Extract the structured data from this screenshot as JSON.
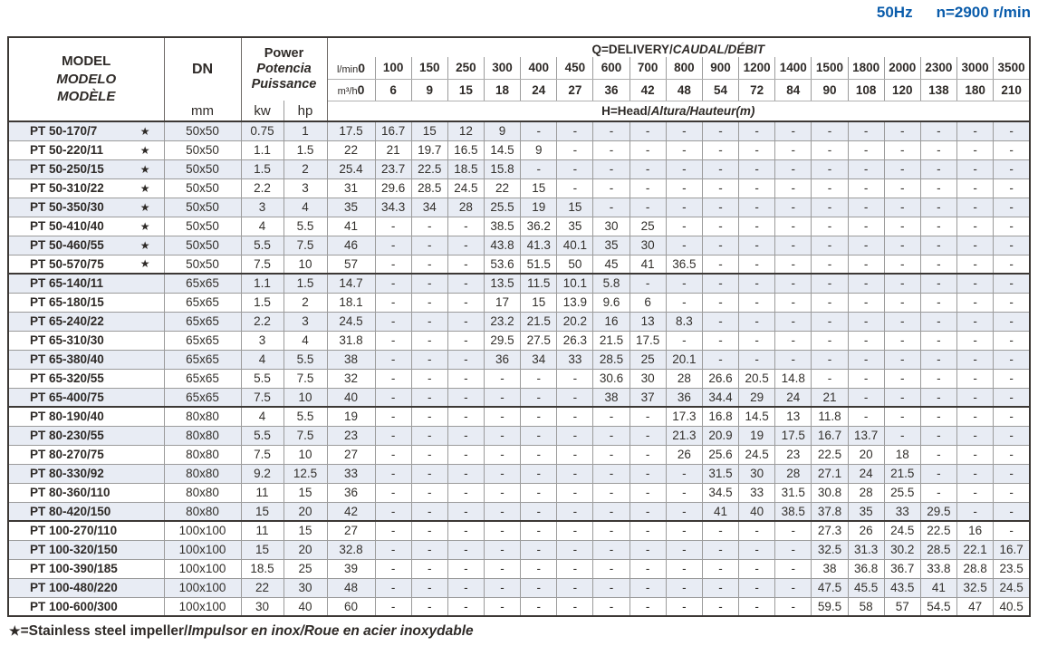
{
  "note": {
    "frequency": "50Hz",
    "speed": "n=2900 r/min"
  },
  "table": {
    "model_header": {
      "line1": "MODEL",
      "line2": "MODELO",
      "line3": "MODÈLE"
    },
    "dn_header": {
      "label": "DN",
      "unit": "mm"
    },
    "power_header": {
      "line1": "Power",
      "line2": "Potencia",
      "line3": "Puissance",
      "unit1": "kw",
      "unit2": "hp"
    },
    "q_header": {
      "title_plain": "Q=DELIVERY/",
      "title_italic": "CAUDAL/DÉBIT",
      "lmin_label": "l/min",
      "m3h_label": "m³/h",
      "lmin_values": [
        "0",
        "100",
        "150",
        "250",
        "300",
        "400",
        "450",
        "600",
        "700",
        "800",
        "900",
        "1200",
        "1400",
        "1500",
        "1800",
        "2000",
        "2300",
        "3000",
        "3500"
      ],
      "m3h_values": [
        "0",
        "6",
        "9",
        "15",
        "18",
        "24",
        "27",
        "36",
        "42",
        "48",
        "54",
        "72",
        "84",
        "90",
        "108",
        "120",
        "138",
        "180",
        "210"
      ],
      "head_plain": "H=Head/",
      "head_italic": "Altura/Hauteur(m)"
    },
    "rows": [
      {
        "model": "PT 50-170/7",
        "star": true,
        "group_start": false,
        "dn": "50x50",
        "kw": "0.75",
        "hp": "1",
        "heads": [
          "17.5",
          "16.7",
          "15",
          "12",
          "9",
          "-",
          "-",
          "-",
          "-",
          "-",
          "-",
          "-",
          "-",
          "-",
          "-",
          "-",
          "-",
          "-",
          "-"
        ]
      },
      {
        "model": "PT 50-220/11",
        "star": true,
        "group_start": false,
        "dn": "50x50",
        "kw": "1.1",
        "hp": "1.5",
        "heads": [
          "22",
          "21",
          "19.7",
          "16.5",
          "14.5",
          "9",
          "-",
          "-",
          "-",
          "-",
          "-",
          "-",
          "-",
          "-",
          "-",
          "-",
          "-",
          "-",
          "-"
        ]
      },
      {
        "model": "PT 50-250/15",
        "star": true,
        "group_start": false,
        "dn": "50x50",
        "kw": "1.5",
        "hp": "2",
        "heads": [
          "25.4",
          "23.7",
          "22.5",
          "18.5",
          "15.8",
          "-",
          "-",
          "-",
          "-",
          "-",
          "-",
          "-",
          "-",
          "-",
          "-",
          "-",
          "-",
          "-",
          "-"
        ]
      },
      {
        "model": "PT 50-310/22",
        "star": true,
        "group_start": false,
        "dn": "50x50",
        "kw": "2.2",
        "hp": "3",
        "heads": [
          "31",
          "29.6",
          "28.5",
          "24.5",
          "22",
          "15",
          "-",
          "-",
          "-",
          "-",
          "-",
          "-",
          "-",
          "-",
          "-",
          "-",
          "-",
          "-",
          "-"
        ]
      },
      {
        "model": "PT 50-350/30",
        "star": true,
        "group_start": false,
        "dn": "50x50",
        "kw": "3",
        "hp": "4",
        "heads": [
          "35",
          "34.3",
          "34",
          "28",
          "25.5",
          "19",
          "15",
          "-",
          "-",
          "-",
          "-",
          "-",
          "-",
          "-",
          "-",
          "-",
          "-",
          "-",
          "-"
        ]
      },
      {
        "model": "PT 50-410/40",
        "star": true,
        "group_start": false,
        "dn": "50x50",
        "kw": "4",
        "hp": "5.5",
        "heads": [
          "41",
          "-",
          "-",
          "-",
          "38.5",
          "36.2",
          "35",
          "30",
          "25",
          "-",
          "-",
          "-",
          "-",
          "-",
          "-",
          "-",
          "-",
          "-",
          "-"
        ]
      },
      {
        "model": "PT 50-460/55",
        "star": true,
        "group_start": false,
        "dn": "50x50",
        "kw": "5.5",
        "hp": "7.5",
        "heads": [
          "46",
          "-",
          "-",
          "-",
          "43.8",
          "41.3",
          "40.1",
          "35",
          "30",
          "-",
          "-",
          "-",
          "-",
          "-",
          "-",
          "-",
          "-",
          "-",
          "-"
        ]
      },
      {
        "model": "PT 50-570/75",
        "star": true,
        "group_start": false,
        "dn": "50x50",
        "kw": "7.5",
        "hp": "10",
        "heads": [
          "57",
          "-",
          "-",
          "-",
          "53.6",
          "51.5",
          "50",
          "45",
          "41",
          "36.5",
          "-",
          "-",
          "-",
          "-",
          "-",
          "-",
          "-",
          "-",
          "-"
        ]
      },
      {
        "model": "PT 65-140/11",
        "star": false,
        "group_start": true,
        "dn": "65x65",
        "kw": "1.1",
        "hp": "1.5",
        "heads": [
          "14.7",
          "-",
          "-",
          "-",
          "13.5",
          "11.5",
          "10.1",
          "5.8",
          "-",
          "-",
          "-",
          "-",
          "-",
          "-",
          "-",
          "-",
          "-",
          "-",
          "-"
        ]
      },
      {
        "model": "PT 65-180/15",
        "star": false,
        "group_start": false,
        "dn": "65x65",
        "kw": "1.5",
        "hp": "2",
        "heads": [
          "18.1",
          "-",
          "-",
          "-",
          "17",
          "15",
          "13.9",
          "9.6",
          "6",
          "-",
          "-",
          "-",
          "-",
          "-",
          "-",
          "-",
          "-",
          "-",
          "-"
        ]
      },
      {
        "model": "PT 65-240/22",
        "star": false,
        "group_start": false,
        "dn": "65x65",
        "kw": "2.2",
        "hp": "3",
        "heads": [
          "24.5",
          "-",
          "-",
          "-",
          "23.2",
          "21.5",
          "20.2",
          "16",
          "13",
          "8.3",
          "-",
          "-",
          "-",
          "-",
          "-",
          "-",
          "-",
          "-",
          "-"
        ]
      },
      {
        "model": "PT 65-310/30",
        "star": false,
        "group_start": false,
        "dn": "65x65",
        "kw": "3",
        "hp": "4",
        "heads": [
          "31.8",
          "-",
          "-",
          "-",
          "29.5",
          "27.5",
          "26.3",
          "21.5",
          "17.5",
          "-",
          "-",
          "-",
          "-",
          "-",
          "-",
          "-",
          "-",
          "-",
          "-"
        ]
      },
      {
        "model": "PT 65-380/40",
        "star": false,
        "group_start": false,
        "dn": "65x65",
        "kw": "4",
        "hp": "5.5",
        "heads": [
          "38",
          "-",
          "-",
          "-",
          "36",
          "34",
          "33",
          "28.5",
          "25",
          "20.1",
          "-",
          "-",
          "-",
          "-",
          "-",
          "-",
          "-",
          "-",
          "-"
        ]
      },
      {
        "model": "PT 65-320/55",
        "star": false,
        "group_start": false,
        "dn": "65x65",
        "kw": "5.5",
        "hp": "7.5",
        "heads": [
          "32",
          "-",
          "-",
          "-",
          "-",
          "-",
          "-",
          "30.6",
          "30",
          "28",
          "26.6",
          "20.5",
          "14.8",
          "-",
          "-",
          "-",
          "-",
          "-",
          "-"
        ]
      },
      {
        "model": "PT 65-400/75",
        "star": false,
        "group_start": false,
        "dn": "65x65",
        "kw": "7.5",
        "hp": "10",
        "heads": [
          "40",
          "-",
          "-",
          "-",
          "-",
          "-",
          "-",
          "38",
          "37",
          "36",
          "34.4",
          "29",
          "24",
          "21",
          "-",
          "-",
          "-",
          "-",
          "-"
        ]
      },
      {
        "model": "PT 80-190/40",
        "star": false,
        "group_start": true,
        "dn": "80x80",
        "kw": "4",
        "hp": "5.5",
        "heads": [
          "19",
          "-",
          "-",
          "-",
          "-",
          "-",
          "-",
          "-",
          "-",
          "17.3",
          "16.8",
          "14.5",
          "13",
          "11.8",
          "-",
          "-",
          "-",
          "-",
          "-"
        ]
      },
      {
        "model": "PT 80-230/55",
        "star": false,
        "group_start": false,
        "dn": "80x80",
        "kw": "5.5",
        "hp": "7.5",
        "heads": [
          "23",
          "-",
          "-",
          "-",
          "-",
          "-",
          "-",
          "-",
          "-",
          "21.3",
          "20.9",
          "19",
          "17.5",
          "16.7",
          "13.7",
          "-",
          "-",
          "-",
          "-"
        ]
      },
      {
        "model": "PT 80-270/75",
        "star": false,
        "group_start": false,
        "dn": "80x80",
        "kw": "7.5",
        "hp": "10",
        "heads": [
          "27",
          "-",
          "-",
          "-",
          "-",
          "-",
          "-",
          "-",
          "-",
          "26",
          "25.6",
          "24.5",
          "23",
          "22.5",
          "20",
          "18",
          "-",
          "-",
          "-"
        ]
      },
      {
        "model": "PT 80-330/92",
        "star": false,
        "group_start": false,
        "dn": "80x80",
        "kw": "9.2",
        "hp": "12.5",
        "heads": [
          "33",
          "-",
          "-",
          "-",
          "-",
          "-",
          "-",
          "-",
          "-",
          "-",
          "31.5",
          "30",
          "28",
          "27.1",
          "24",
          "21.5",
          "-",
          "-",
          "-"
        ]
      },
      {
        "model": "PT 80-360/110",
        "star": false,
        "group_start": false,
        "dn": "80x80",
        "kw": "11",
        "hp": "15",
        "heads": [
          "36",
          "-",
          "-",
          "-",
          "-",
          "-",
          "-",
          "-",
          "-",
          "-",
          "34.5",
          "33",
          "31.5",
          "30.8",
          "28",
          "25.5",
          "-",
          "-",
          "-"
        ]
      },
      {
        "model": "PT 80-420/150",
        "star": false,
        "group_start": false,
        "dn": "80x80",
        "kw": "15",
        "hp": "20",
        "heads": [
          "42",
          "-",
          "-",
          "-",
          "-",
          "-",
          "-",
          "-",
          "-",
          "-",
          "41",
          "40",
          "38.5",
          "37.8",
          "35",
          "33",
          "29.5",
          "-",
          "-"
        ]
      },
      {
        "model": "PT 100-270/110",
        "star": false,
        "group_start": true,
        "dn": "100x100",
        "kw": "11",
        "hp": "15",
        "heads": [
          "27",
          "-",
          "-",
          "-",
          "-",
          "-",
          "-",
          "-",
          "-",
          "-",
          "-",
          "-",
          "-",
          "27.3",
          "26",
          "24.5",
          "22.5",
          "16",
          "-"
        ]
      },
      {
        "model": "PT 100-320/150",
        "star": false,
        "group_start": false,
        "dn": "100x100",
        "kw": "15",
        "hp": "20",
        "heads": [
          "32.8",
          "-",
          "-",
          "-",
          "-",
          "-",
          "-",
          "-",
          "-",
          "-",
          "-",
          "-",
          "-",
          "32.5",
          "31.3",
          "30.2",
          "28.5",
          "22.1",
          "16.7"
        ]
      },
      {
        "model": "PT 100-390/185",
        "star": false,
        "group_start": false,
        "dn": "100x100",
        "kw": "18.5",
        "hp": "25",
        "heads": [
          "39",
          "-",
          "-",
          "-",
          "-",
          "-",
          "-",
          "-",
          "-",
          "-",
          "-",
          "-",
          "-",
          "38",
          "36.8",
          "36.7",
          "33.8",
          "28.8",
          "23.5"
        ]
      },
      {
        "model": "PT 100-480/220",
        "star": false,
        "group_start": false,
        "dn": "100x100",
        "kw": "22",
        "hp": "30",
        "heads": [
          "48",
          "-",
          "-",
          "-",
          "-",
          "-",
          "-",
          "-",
          "-",
          "-",
          "-",
          "-",
          "-",
          "47.5",
          "45.5",
          "43.5",
          "41",
          "32.5",
          "24.5"
        ]
      },
      {
        "model": "PT 100-600/300",
        "star": false,
        "group_start": false,
        "dn": "100x100",
        "kw": "30",
        "hp": "40",
        "heads": [
          "60",
          "-",
          "-",
          "-",
          "-",
          "-",
          "-",
          "-",
          "-",
          "-",
          "-",
          "-",
          "-",
          "59.5",
          "58",
          "57",
          "54.5",
          "47",
          "40.5"
        ]
      }
    ]
  },
  "footnote": {
    "symbol": "★",
    "plain": "=Stainless steel impeller/",
    "italic": "Impulsor en inox/Roue en acier inoxydable"
  },
  "colors": {
    "accent_blue": "#0a5cab",
    "row_shade": "#e8ecf4",
    "grid_gray": "#9b9b9b",
    "dark_border": "#3c3835",
    "text": "#2e2a27"
  }
}
